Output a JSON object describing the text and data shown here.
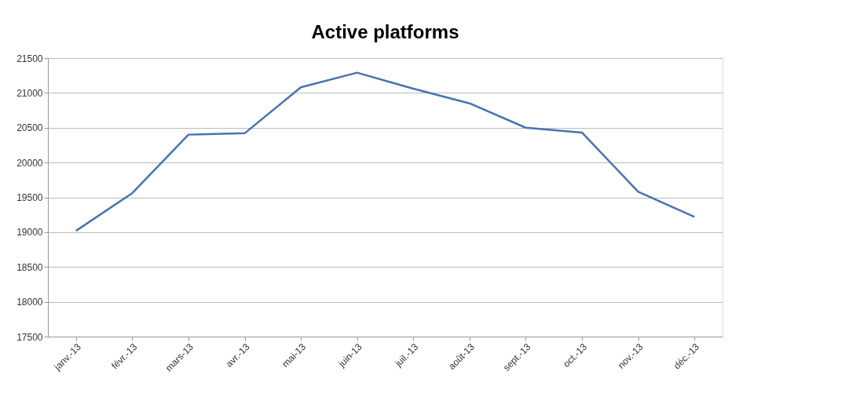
{
  "chart_data": {
    "type": "line",
    "title": "Active platforms",
    "categories": [
      "janv.-13",
      "févr.-13",
      "mars-13",
      "avr.-13",
      "mai-13",
      "juin-13",
      "juil.-13",
      "août-13",
      "sept.-13",
      "oct.-13",
      "nov.-13",
      "déc.-13"
    ],
    "series": [
      {
        "color": "#4a72b0",
        "values": [
          19020,
          19560,
          20400,
          20420,
          21080,
          21290,
          21060,
          20850,
          20500,
          20430,
          19580,
          19220
        ]
      }
    ],
    "ylim": [
      17500,
      21500
    ],
    "yticks": [
      17500,
      18000,
      18500,
      19000,
      19500,
      20000,
      20500,
      21000,
      21500
    ],
    "grid": "y",
    "marker": "none",
    "line_style": "solid"
  }
}
